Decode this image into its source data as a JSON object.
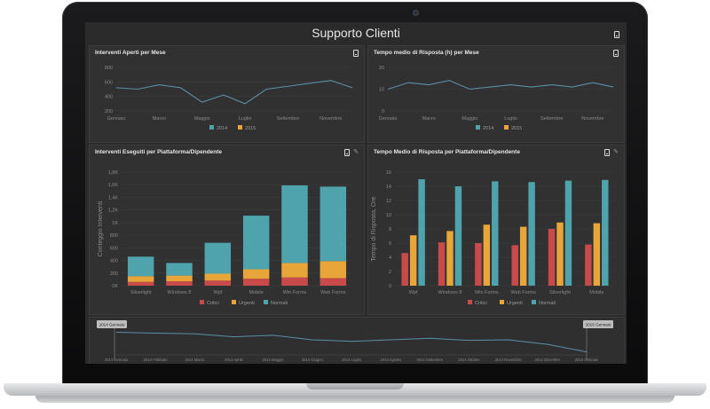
{
  "dashboard": {
    "title": "Supporto Clienti",
    "panels": {
      "top_left": {
        "title": "Interventi Aperti per Mese"
      },
      "top_right": {
        "title": "Tempo medio di Risposta (h) per Mese"
      },
      "mid_left": {
        "title": "Interventi Eseguiti per Piattaforma/Dipendente"
      },
      "mid_right": {
        "title": "Tempo Medio di Risposta per Piattaforma/Dipendente"
      }
    },
    "range": {
      "start_label": "2014 Gennaio",
      "end_label": "2015 Gennaio"
    }
  },
  "colors": {
    "teal": "#4fa3ad",
    "orange": "#e8a63a",
    "red": "#c94a4a",
    "line": "#5b8fa6"
  },
  "chart_data": [
    {
      "type": "line",
      "title": "Interventi Aperti per Mese",
      "x_ticks": [
        "Gennaio",
        "Marzo",
        "Maggio",
        "Luglio",
        "Settembre",
        "Novembre"
      ],
      "x": [
        "Gennaio",
        "Febbraio",
        "Marzo",
        "Aprile",
        "Maggio",
        "Giugno",
        "Luglio",
        "Agosto",
        "Settembre",
        "Ottobre",
        "Novembre",
        "Dicembre"
      ],
      "y_ticks": [
        "800",
        "600",
        "400",
        "200"
      ],
      "ylim": [
        200,
        800
      ],
      "series": [
        {
          "name": "2014",
          "values": [
            520,
            500,
            560,
            520,
            320,
            420,
            300,
            500,
            540,
            580,
            620,
            520
          ]
        }
      ],
      "legend": [
        "2014",
        "2015"
      ],
      "legend_colors": [
        "#4fa3ad",
        "#e8a63a"
      ]
    },
    {
      "type": "line",
      "title": "Tempo medio di Risposta (h) per Mese",
      "x_ticks": [
        "Gennaio",
        "Marzo",
        "Maggio",
        "Luglio",
        "Settembre",
        "Novembre"
      ],
      "x": [
        "Gennaio",
        "Febbraio",
        "Marzo",
        "Aprile",
        "Maggio",
        "Giugno",
        "Luglio",
        "Agosto",
        "Settembre",
        "Ottobre",
        "Novembre",
        "Dicembre"
      ],
      "y_ticks": [
        "20",
        "10",
        "0"
      ],
      "ylim": [
        0,
        20
      ],
      "series": [
        {
          "name": "2014",
          "values": [
            10,
            13,
            12,
            14,
            10,
            11,
            12,
            11,
            12,
            11,
            13,
            11
          ]
        }
      ],
      "legend": [
        "2014",
        "2015"
      ],
      "legend_colors": [
        "#4fa3ad",
        "#e8a63a"
      ]
    },
    {
      "type": "bar",
      "title": "Interventi Eseguiti per Piattaforma/Dipendente",
      "ylabel": "Conteggio Interventi",
      "categories": [
        "Silverlight",
        "Windows 8",
        "Wpf",
        "Mobile",
        "Win Forms",
        "Web Forms"
      ],
      "y_ticks": [
        "1,8K",
        "1,6K",
        "1,4K",
        "1,2K",
        "1K",
        "800",
        "600",
        "400",
        "200",
        "0K"
      ],
      "ylim": [
        0,
        1800
      ],
      "stacked": true,
      "series": [
        {
          "name": "Critici",
          "values": [
            60,
            70,
            80,
            110,
            130,
            120
          ]
        },
        {
          "name": "Urgenti",
          "values": [
            90,
            90,
            110,
            150,
            230,
            270
          ]
        },
        {
          "name": "Normali",
          "values": [
            310,
            200,
            490,
            850,
            1230,
            1180
          ]
        }
      ]
    },
    {
      "type": "bar",
      "title": "Tempo Medio di Risposta per Piattaforma/Dipendente",
      "ylabel": "Tempo di Risposta, Ore",
      "categories": [
        "Wpf",
        "Windows 8",
        "Win Forms",
        "Web Forms",
        "Silverlight",
        "Mobile"
      ],
      "y_ticks": [
        "16",
        "14",
        "12",
        "10",
        "8",
        "6",
        "4",
        "2",
        "0"
      ],
      "ylim": [
        0,
        16
      ],
      "series": [
        {
          "name": "Critici",
          "values": [
            4.6,
            6.1,
            6.0,
            5.7,
            8.0,
            5.8
          ]
        },
        {
          "name": "Urgenti",
          "values": [
            7.1,
            7.7,
            8.6,
            8.3,
            8.9,
            8.8
          ]
        },
        {
          "name": "Normali",
          "values": [
            15.0,
            14.0,
            14.7,
            14.6,
            14.8,
            14.9
          ]
        }
      ]
    },
    {
      "type": "area",
      "title": "",
      "x_ticks": [
        "2014 Gennaio",
        "2014 Febbraio",
        "2014 Marzo",
        "2014 Aprile",
        "2014 Maggio",
        "2014 Giugno",
        "2014 Luglio",
        "2014 Agosto",
        "2014 Settembre",
        "2014 Ottobre",
        "2014 Novembre",
        "2014 Dicembre",
        "2015 Gennaio"
      ],
      "series": [
        {
          "name": "",
          "values": [
            0.75,
            0.72,
            0.7,
            0.6,
            0.65,
            0.5,
            0.45,
            0.5,
            0.55,
            0.48,
            0.5,
            0.35,
            0.1
          ]
        }
      ]
    }
  ]
}
